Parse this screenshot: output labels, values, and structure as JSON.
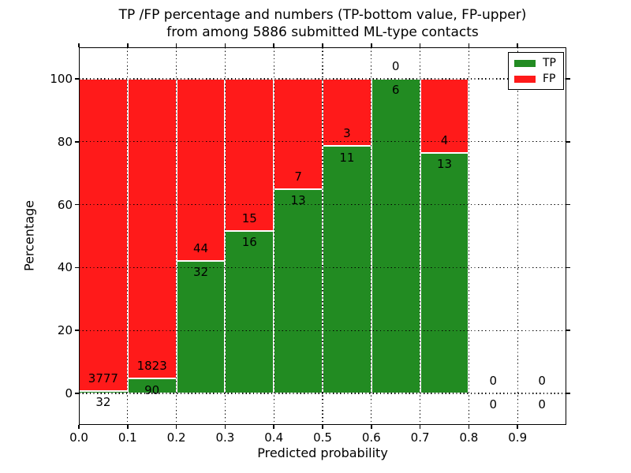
{
  "figure": {
    "title_line1": "TP /FP percentage and numbers (TP-bottom value, FP-upper)",
    "title_line2": "from among 5886 submitted ML-type contacts"
  },
  "chart_data": {
    "type": "bar",
    "stacked": true,
    "title": "TP /FP percentage and numbers (TP-bottom value, FP-upper)\nfrom among 5886 submitted ML-type contacts",
    "xlabel": "Predicted probability",
    "ylabel": "Percentage",
    "xlim": [
      0.0,
      1.0
    ],
    "ylim": [
      -10,
      110
    ],
    "x_tick_labels": [
      "0.0",
      "0.1",
      "0.2",
      "0.3",
      "0.4",
      "0.5",
      "0.6",
      "0.7",
      "0.8",
      "0.9"
    ],
    "y_tick_labels": [
      "0",
      "20",
      "40",
      "60",
      "80",
      "100"
    ],
    "grid": true,
    "grid_style": "dotted",
    "legend_position": "upper right",
    "bin_edges": [
      0.0,
      0.1,
      0.2,
      0.3,
      0.4,
      0.5,
      0.6,
      0.7,
      0.8,
      0.9,
      1.0
    ],
    "total_contacts": 5886,
    "series": [
      {
        "name": "TP",
        "color": "#228B22",
        "counts": [
          32,
          90,
          32,
          16,
          13,
          11,
          6,
          13,
          0,
          0
        ],
        "percentages": [
          0.84,
          4.7,
          42.11,
          51.61,
          65.0,
          78.57,
          100.0,
          76.47,
          0,
          0
        ]
      },
      {
        "name": "FP",
        "color": "#FF1A1A",
        "counts": [
          3777,
          1823,
          44,
          15,
          7,
          3,
          0,
          4,
          0,
          0
        ],
        "percentages": [
          99.16,
          95.3,
          57.89,
          48.39,
          35.0,
          21.43,
          0.0,
          23.53,
          0,
          0
        ]
      }
    ],
    "annotation_note": "TP count drawn just below each green/red boundary, FP count just above it"
  }
}
